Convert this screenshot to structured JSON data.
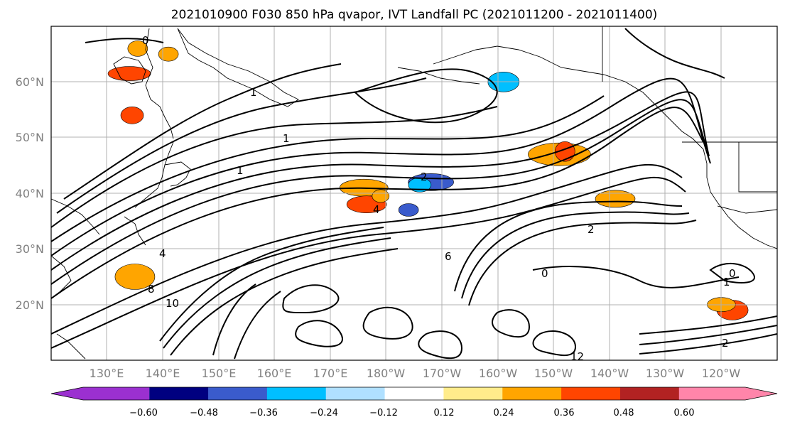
{
  "title": "2021010900 F030 850 hPa qvapor, IVT Landfall PC (2021011200 - 2021011400)",
  "map": {
    "lat_labels": [
      "60°N",
      "50°N",
      "40°N",
      "30°N",
      "20°N"
    ],
    "lon_labels": [
      "130°E",
      "140°E",
      "150°E",
      "160°E",
      "170°E",
      "180°W",
      "170°W",
      "160°W",
      "150°W",
      "140°W",
      "130°W",
      "120°W"
    ],
    "contour_labels": [
      "0",
      "1",
      "1",
      "1",
      "2",
      "2",
      "2",
      "4",
      "4",
      "6",
      "8",
      "10",
      "12",
      "0",
      "1",
      "0"
    ],
    "lat_range": [
      10,
      70
    ],
    "lon_range_east": [
      120,
      250
    ]
  },
  "colorbar": {
    "tick_labels": [
      "−0.60",
      "−0.48",
      "−0.36",
      "−0.24",
      "−0.12",
      "0.12",
      "0.24",
      "0.36",
      "0.48",
      "0.60"
    ],
    "colors": [
      "#9b30d0",
      "#000080",
      "#3a5bcc",
      "#00bfff",
      "#b0e0ff",
      "#ffffff",
      "#ffec8b",
      "#ffa500",
      "#ff4500",
      "#b22222",
      "#ff85aa"
    ],
    "extend": "both"
  },
  "shaded_blobs": [
    {
      "color": "#ff4500",
      "lon": 134,
      "lat": 61.5
    },
    {
      "color": "#ffa500",
      "lon": 141,
      "lat": 65
    },
    {
      "color": "#ffa500",
      "lon": 135.5,
      "lat": 66
    },
    {
      "color": "#ff4500",
      "lon": 134.5,
      "lat": 54
    },
    {
      "color": "#ffa500",
      "lon": 176,
      "lat": 41
    },
    {
      "color": "#ff4500",
      "lon": 176.5,
      "lat": 38
    },
    {
      "color": "#ffa500",
      "lon": 179,
      "lat": 39.5
    },
    {
      "color": "#3a5bcc",
      "lon": 188,
      "lat": 42
    },
    {
      "color": "#00bfff",
      "lon": 186,
      "lat": 41.5
    },
    {
      "color": "#3a5bcc",
      "lon": 184,
      "lat": 37
    },
    {
      "color": "#00bfff",
      "lon": 201,
      "lat": 60
    },
    {
      "color": "#ffa500",
      "lon": 211,
      "lat": 47
    },
    {
      "color": "#ff4500",
      "lon": 212,
      "lat": 47.5
    },
    {
      "color": "#ffa500",
      "lon": 221,
      "lat": 39
    },
    {
      "color": "#ffa500",
      "lon": 135,
      "lat": 25
    },
    {
      "color": "#ff4500",
      "lon": 242,
      "lat": 19
    },
    {
      "color": "#ffa500",
      "lon": 240,
      "lat": 20
    }
  ]
}
